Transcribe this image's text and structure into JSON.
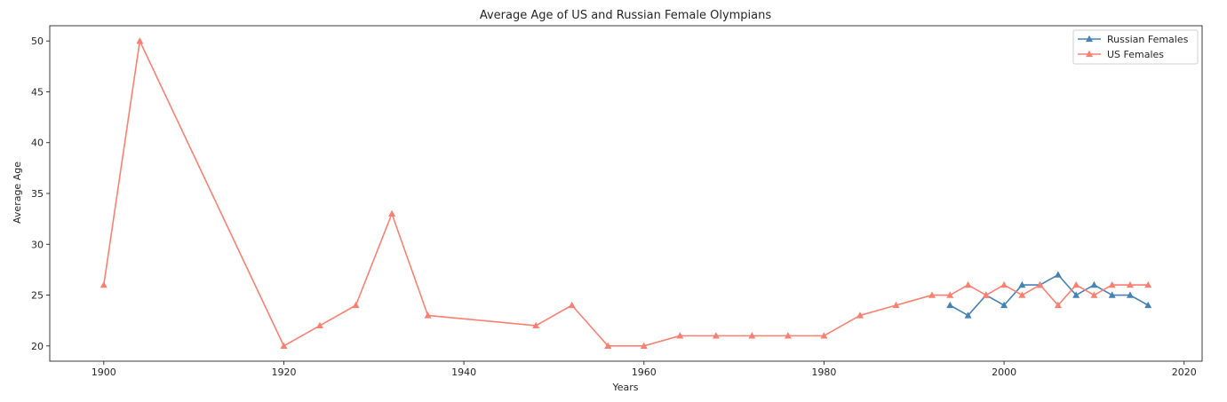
{
  "chart_data": {
    "type": "line",
    "title": "Average Age of US and Russian Female Olympians",
    "xlabel": "Years",
    "ylabel": "Average Age",
    "xlim": [
      1894,
      2022
    ],
    "ylim": [
      18.5,
      51.5
    ],
    "xticks": [
      1900,
      1920,
      1940,
      1960,
      1980,
      2000,
      2020
    ],
    "yticks": [
      20,
      25,
      30,
      35,
      40,
      45,
      50
    ],
    "grid": false,
    "legend_position": "top-right",
    "series": [
      {
        "name": "Russian Females",
        "color": "#4682b4",
        "marker": "triangle",
        "x": [
          1994,
          1996,
          1998,
          2000,
          2002,
          2004,
          2006,
          2008,
          2010,
          2012,
          2014,
          2016
        ],
        "y": [
          24,
          23,
          25,
          24,
          26,
          26,
          27,
          25,
          26,
          25,
          25,
          24
        ]
      },
      {
        "name": "US Females",
        "color": "#fa8072",
        "marker": "triangle",
        "x": [
          1900,
          1904,
          1920,
          1924,
          1928,
          1932,
          1936,
          1948,
          1952,
          1956,
          1960,
          1964,
          1968,
          1972,
          1976,
          1980,
          1984,
          1988,
          1992,
          1994,
          1996,
          1998,
          2000,
          2002,
          2004,
          2006,
          2008,
          2010,
          2012,
          2014,
          2016
        ],
        "y": [
          26,
          50,
          20,
          22,
          24,
          33,
          23,
          22,
          24,
          20,
          20,
          21,
          21,
          21,
          21,
          21,
          23,
          24,
          25,
          25,
          26,
          25,
          26,
          25,
          26,
          24,
          26,
          25,
          26,
          26,
          26
        ]
      }
    ]
  }
}
